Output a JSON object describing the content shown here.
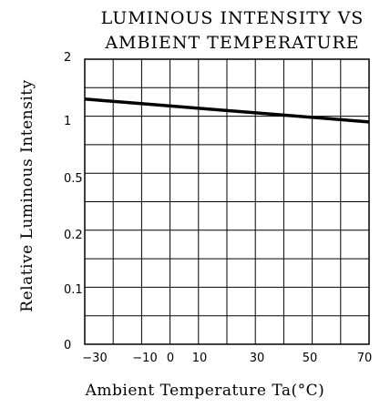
{
  "chart_data": {
    "type": "line",
    "title": [
      "LUMINOUS INTENSITY VS",
      "AMBIENT TEMPERATURE"
    ],
    "xlabel": "Ambient  Temperature  Ta(°C)",
    "ylabel": "Relative Luminous Intensity",
    "x_ticks": [
      "−30",
      "−10",
      "0",
      "10",
      "30",
      "50",
      "70"
    ],
    "y_ticks": [
      "2",
      "1",
      "0.5",
      "0.2",
      "0.1",
      "0"
    ],
    "xlim": [
      -30,
      70
    ],
    "grid": true,
    "series": [
      {
        "x": [
          -30,
          70
        ],
        "y": [
          1.3,
          0.95
        ]
      }
    ]
  }
}
